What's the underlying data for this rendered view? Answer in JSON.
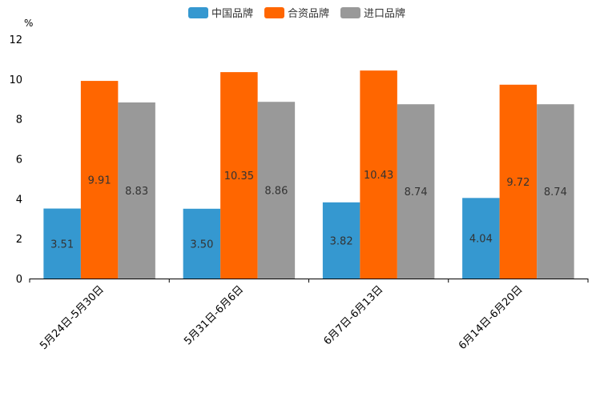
{
  "chart_data": {
    "type": "bar",
    "title": "",
    "xlabel": "",
    "ylabel": "%",
    "ylim": [
      0,
      12
    ],
    "yticks": [
      0,
      2,
      4,
      6,
      8,
      10,
      12
    ],
    "grid": false,
    "legend_position": "top-center",
    "categories": [
      "5月24日-5月30日",
      "5月31日-6月6日",
      "6月7日-6月13日",
      "6月14日-6月20日"
    ],
    "series": [
      {
        "name": "中国品牌",
        "color": "#3598d0",
        "values": [
          3.51,
          3.5,
          3.82,
          4.04
        ],
        "labels": [
          "3.51",
          "3.50",
          "3.82",
          "4.04"
        ]
      },
      {
        "name": "合资品牌",
        "color": "#ff6600",
        "values": [
          9.91,
          10.35,
          10.43,
          9.72
        ],
        "labels": [
          "9.91",
          "10.35",
          "10.43",
          "9.72"
        ]
      },
      {
        "name": "进口品牌",
        "color": "#999999",
        "values": [
          8.83,
          8.86,
          8.74,
          8.74
        ],
        "labels": [
          "8.83",
          "8.86",
          "8.74",
          "8.74"
        ]
      }
    ]
  }
}
